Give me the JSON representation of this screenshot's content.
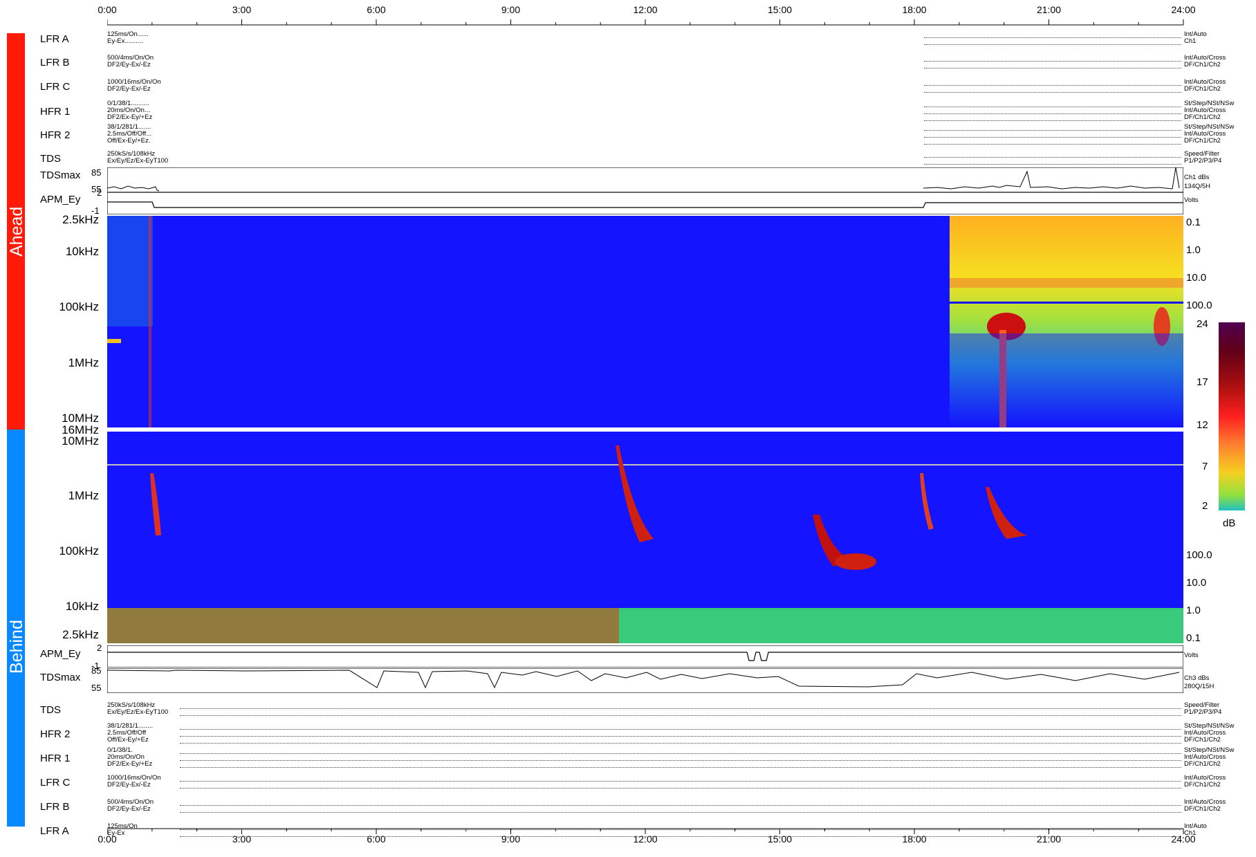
{
  "time_axis": {
    "ticks": [
      "0:00",
      "3:00",
      "6:00",
      "9:00",
      "12:00",
      "15:00",
      "18:00",
      "21:00",
      "24:00"
    ]
  },
  "sections": {
    "ahead": "Ahead",
    "behind": "Behind"
  },
  "colors": {
    "ahead": "#ff1a0a",
    "behind": "#0a88ff",
    "background": "#1414ff"
  },
  "ahead_rows": [
    {
      "label": "LFR A",
      "cfg": [
        "125ms/On......",
        "Ey-Ex.........."
      ],
      "right": [
        "Int/Auto",
        "Ch1"
      ]
    },
    {
      "label": "LFR B",
      "cfg": [
        "500/4ms/On/On",
        "DF2/Ey-Ex/-Ez"
      ],
      "right": [
        "Int/Auto/Cross",
        "DF/Ch1/Ch2"
      ]
    },
    {
      "label": "LFR C",
      "cfg": [
        "1000/16ms/On/On",
        "DF2/Ey-Ex/-Ez"
      ],
      "right": [
        "Int/Auto/Cross",
        "DF/Ch1/Ch2"
      ]
    },
    {
      "label": "HFR 1",
      "cfg": [
        "0/1/38/1..........",
        "20ms/On/On...",
        "DF2/Ex-Ey/+Ez"
      ],
      "right": [
        "St/Step/NSt/NSw",
        "Int/Auto/Cross",
        "DF/Ch1/Ch2"
      ]
    },
    {
      "label": "HFR 2",
      "cfg": [
        "38/1/281/1.......",
        "2.5ms/Off/Off...",
        "Off/Ex-Ey/+Ez."
      ],
      "right": [
        "St/Step/NSt/NSw",
        "Int/Auto/Cross",
        "DF/Ch1/Ch2"
      ]
    },
    {
      "label": "TDS",
      "cfg": [
        "250kS/s/108kHz",
        "Ex/Ey/Ez/Ex-EyT100"
      ],
      "right": [
        "Speed/Filter",
        "P1/P2/P3/P4"
      ]
    }
  ],
  "behind_rows": [
    {
      "label": "TDS",
      "cfg": [
        "250kS/s/108kHz",
        "Ex/Ey/Ez/Ex-EyT100"
      ],
      "right": [
        "Speed/Filter",
        "P1/P2/P3/P4"
      ]
    },
    {
      "label": "HFR 2",
      "cfg": [
        "38/1/281/1........",
        "2.5ms/Off/Off",
        "Off/Ex-Ey/+Ez"
      ],
      "right": [
        "St/Step/NSt/NSw",
        "Int/Auto/Cross",
        "DF/Ch1/Ch2"
      ]
    },
    {
      "label": "HFR 1",
      "cfg": [
        "0/1/38/1.",
        "20ms/On/On",
        "DF2/Ex-Ey/+Ez"
      ],
      "right": [
        "St/Step/NSt/NSw",
        "Int/Auto/Cross",
        "DF/Ch1/Ch2"
      ]
    },
    {
      "label": "LFR C",
      "cfg": [
        "1000/16ms/On/On",
        "DF2/Ey-Ex/-Ez"
      ],
      "right": [
        "Int/Auto/Cross",
        "DF/Ch1/Ch2"
      ]
    },
    {
      "label": "LFR B",
      "cfg": [
        "500/4ms/On/On",
        "DF2/Ey-Ex/-Ez"
      ],
      "right": [
        "Int/Auto/Cross",
        "DF/Ch1/Ch2"
      ]
    },
    {
      "label": "LFR A",
      "cfg": [
        "125ms/On",
        "Ey-Ex"
      ],
      "right": [
        "Int/Auto",
        "Ch1"
      ]
    }
  ],
  "chart_data": [
    {
      "type": "line",
      "title": "TDSmax",
      "section": "Ahead",
      "y_ticks": [
        "85",
        "55"
      ],
      "right": [
        "Ch1 dBs",
        "134Q/5H"
      ],
      "ylim": [
        55,
        85
      ]
    },
    {
      "type": "line",
      "title": "APM_Ey",
      "section": "Ahead",
      "y_ticks": [
        "2",
        "-1"
      ],
      "right": [
        "Volts"
      ],
      "ylim": [
        -1,
        2
      ]
    },
    {
      "type": "heatmap",
      "section": "Ahead",
      "y_ticks_left": [
        "2.5kHz",
        "10kHz",
        "100kHz",
        "1MHz",
        "10MHz"
      ],
      "y_ticks_right": [
        "0.1",
        "1.0",
        "10.0",
        "100.0"
      ],
      "xlim": [
        "0:00",
        "24:00"
      ]
    },
    {
      "type": "heatmap",
      "section": "Behind",
      "y_ticks_left": [
        "16MHz",
        "10MHz",
        "1MHz",
        "100kHz",
        "10kHz",
        "2.5kHz"
      ],
      "y_ticks_right": [
        "100.0",
        "10.0",
        "1.0",
        "0.1"
      ],
      "xlim": [
        "0:00",
        "24:00"
      ]
    },
    {
      "type": "line",
      "title": "APM_Ey",
      "section": "Behind",
      "y_ticks": [
        "2",
        "-1"
      ],
      "right": [
        "Volts"
      ],
      "ylim": [
        -1,
        2
      ]
    },
    {
      "type": "line",
      "title": "TDSmax",
      "section": "Behind",
      "y_ticks": [
        "85",
        "55"
      ],
      "right": [
        "Ch3 dBs",
        "280Q/15H"
      ],
      "ylim": [
        55,
        85
      ]
    }
  ],
  "colorbar": {
    "ticks": [
      "24",
      "17",
      "12",
      "7",
      "2"
    ],
    "unit": "dB"
  }
}
